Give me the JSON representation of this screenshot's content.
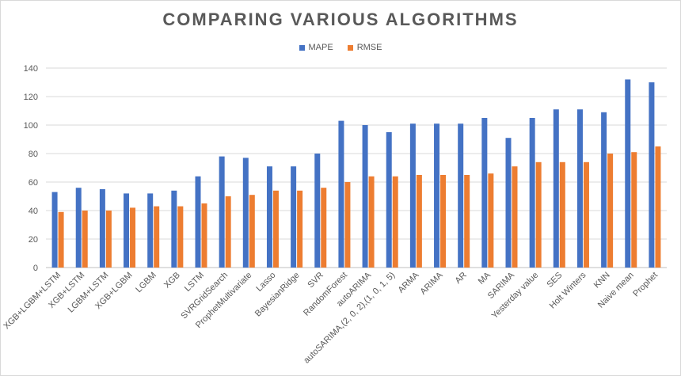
{
  "chart_data": {
    "type": "bar",
    "title": "COMPARING VARIOUS ALGORITHMS",
    "xlabel": "",
    "ylabel": "",
    "ylim": [
      0,
      140
    ],
    "yticks": [
      0,
      20,
      40,
      60,
      80,
      100,
      120,
      140
    ],
    "grid": true,
    "legend_position": "top",
    "categories": [
      "XGB+LGBM+LSTM",
      "XGB+LSTM",
      "LGBM+LSTM",
      "XGB+LGBM",
      "LGBM",
      "XGB",
      "LSTM",
      "SVRGridSearch",
      "ProphetMultivariate",
      "Lasso",
      "BayesianRidge",
      "SVR",
      "RandomForest",
      "autoARIMA",
      "autoSARIMA,(2, 0, 2),(1, 0, 1, 5)",
      "ARMA",
      "ARIMA",
      "AR",
      "MA",
      "SARIMA",
      "Yesterday value",
      "SES",
      "Holt Winters",
      "KNN",
      "Naive mean",
      "Prophet"
    ],
    "series": [
      {
        "name": "MAPE",
        "color": "#4472c4",
        "values": [
          53,
          56,
          55,
          52,
          52,
          54,
          64,
          78,
          77,
          71,
          71,
          80,
          103,
          100,
          95,
          101,
          101,
          101,
          105,
          91,
          105,
          111,
          111,
          109,
          132,
          130
        ]
      },
      {
        "name": "RMSE",
        "color": "#ed7d31",
        "values": [
          39,
          40,
          40,
          42,
          43,
          43,
          45,
          50,
          51,
          54,
          54,
          56,
          60,
          64,
          64,
          65,
          65,
          65,
          66,
          71,
          74,
          74,
          74,
          80,
          81,
          85
        ]
      }
    ]
  }
}
